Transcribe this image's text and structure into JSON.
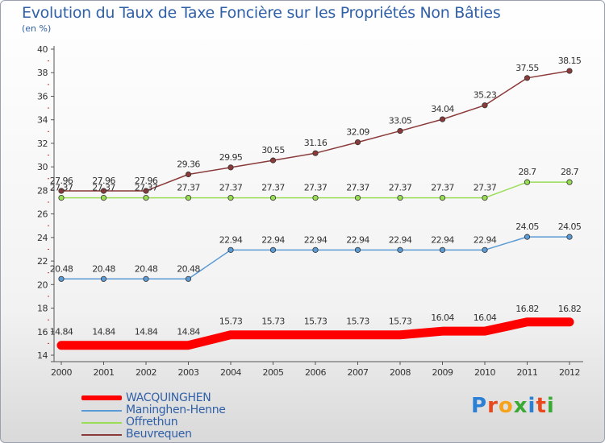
{
  "header": {
    "title": "Evolution du Taux de Taxe Foncière sur les Propriétés Non Bâties",
    "subtitle": "(en %)"
  },
  "chart_data": {
    "type": "line",
    "categories": [
      "2000",
      "2001",
      "2002",
      "2003",
      "2004",
      "2005",
      "2006",
      "2007",
      "2008",
      "2009",
      "2010",
      "2011",
      "2012"
    ],
    "ylim": [
      14,
      40
    ],
    "yticks": [
      14,
      16,
      18,
      20,
      22,
      24,
      26,
      28,
      30,
      32,
      34,
      36,
      38,
      40
    ],
    "grid": false,
    "legend_position": "bottom-left",
    "series": [
      {
        "name": "WACQUINGHEN",
        "color": "#ff0000",
        "values": [
          14.84,
          14.84,
          14.84,
          14.84,
          15.73,
          15.73,
          15.73,
          15.73,
          15.73,
          16.04,
          16.04,
          16.82,
          16.82
        ],
        "labels": [
          "14.84",
          "14.84",
          "14.84",
          "14.84",
          "15.73",
          "15.73",
          "15.73",
          "15.73",
          "15.73",
          "16.04",
          "16.04",
          "16.82",
          "16.82"
        ]
      },
      {
        "name": "Maninghen-Henne",
        "color": "#5b9bd5",
        "values": [
          20.48,
          20.48,
          20.48,
          20.48,
          22.94,
          22.94,
          22.94,
          22.94,
          22.94,
          22.94,
          22.94,
          24.05,
          24.05
        ],
        "labels": [
          "20.48",
          "20.48",
          "20.48",
          "20.48",
          "22.94",
          "22.94",
          "22.94",
          "22.94",
          "22.94",
          "22.94",
          "22.94",
          "24.05",
          "24.05"
        ]
      },
      {
        "name": "Offrethun",
        "color": "#99dd55",
        "values": [
          27.37,
          27.37,
          27.37,
          27.37,
          27.37,
          27.37,
          27.37,
          27.37,
          27.37,
          27.37,
          27.37,
          28.7,
          28.7
        ],
        "labels": [
          "27.37",
          "27.37",
          "27.37",
          "27.37",
          "27.37",
          "27.37",
          "27.37",
          "27.37",
          "27.37",
          "27.37",
          "27.37",
          "28.7",
          "28.7"
        ]
      },
      {
        "name": "Beuvrequen",
        "color": "#8b3a3a",
        "values": [
          27.96,
          27.96,
          27.96,
          29.36,
          29.95,
          30.55,
          31.16,
          32.09,
          33.05,
          34.04,
          35.23,
          37.55,
          38.15
        ],
        "labels": [
          "27.96",
          "27.96",
          "27.96",
          "29.36",
          "29.95",
          "30.55",
          "31.16",
          "32.09",
          "33.05",
          "34.04",
          "35.23",
          "37.55",
          "38.15"
        ]
      }
    ]
  },
  "legend": {
    "items": [
      {
        "label": "WACQUINGHEN",
        "color": "#ff0000"
      },
      {
        "label": "Maninghen-Henne",
        "color": "#5b9bd5"
      },
      {
        "label": "Offrethun",
        "color": "#99dd55"
      },
      {
        "label": "Beuvrequen",
        "color": "#8b3a3a"
      }
    ]
  },
  "logo": {
    "text": "Proxiti",
    "letter_colors": [
      "#2b7fd4",
      "#e8481c",
      "#f5a31a",
      "#3aaa35",
      "#2b7fd4",
      "#e8481c",
      "#3aaa35"
    ]
  }
}
